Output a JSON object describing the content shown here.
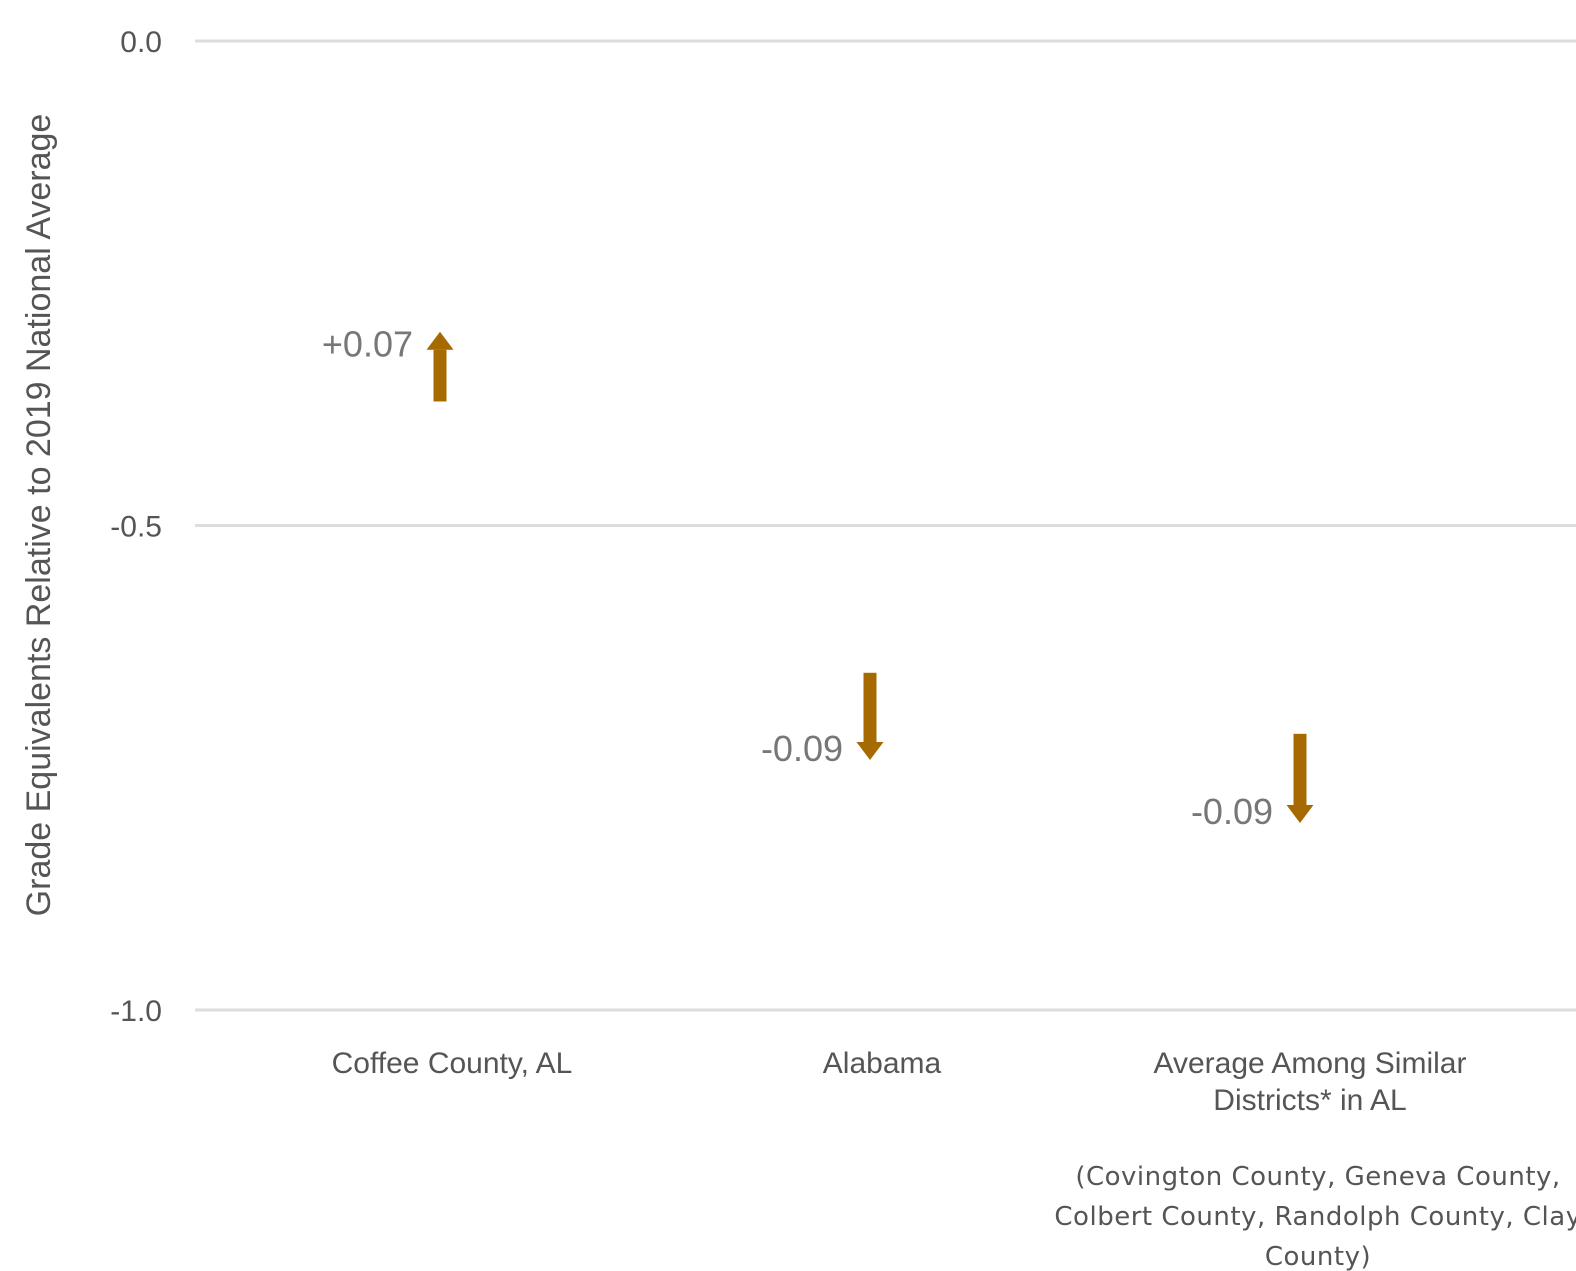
{
  "chart_data": {
    "type": "arrow",
    "ylabel": "Grade Equivalents Relative to 2019 National Average",
    "ylim": [
      -1.0,
      0.0
    ],
    "yticks": [
      {
        "value": 0.0,
        "label": "0.0"
      },
      {
        "value": -0.5,
        "label": "-0.5"
      },
      {
        "value": -1.0,
        "label": "-1.0"
      }
    ],
    "grid": true,
    "arrow_color": "#A66A00",
    "categories": [
      {
        "lines": [
          "Coffee County, AL"
        ],
        "note": []
      },
      {
        "lines": [
          "Alabama"
        ],
        "note": []
      },
      {
        "lines": [
          "Average Among Similar",
          "Districts* in AL"
        ],
        "note": [
          "(Covington County, Geneva County,",
          "Colbert County, Randolph County, Clay",
          "County)"
        ]
      }
    ],
    "series": [
      {
        "start": -0.372,
        "end": -0.3,
        "change_label": "+0.07"
      },
      {
        "start": -0.652,
        "end": -0.742,
        "change_label": "-0.09"
      },
      {
        "start": -0.715,
        "end": -0.807,
        "change_label": "-0.09"
      }
    ]
  }
}
